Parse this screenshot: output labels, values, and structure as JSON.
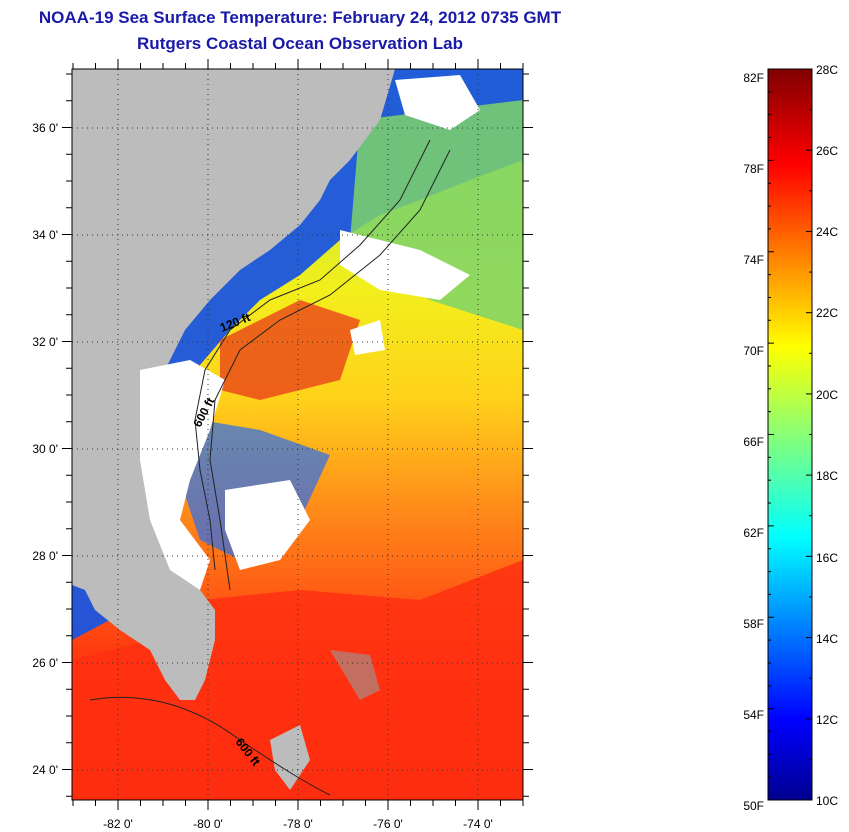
{
  "title": "NOAA-19 Sea Surface Temperature:  February 24, 2012 0735 GMT",
  "subtitle": "Rutgers Coastal Ocean Observation Lab",
  "map": {
    "lon_range": [
      -83.0,
      -73.0
    ],
    "lat_range": [
      23.0,
      37.2
    ],
    "x_tick_labels": [
      "-82 0'",
      "-80 0'",
      "-78 0'",
      "-76 0'",
      "-74 0'"
    ],
    "y_tick_labels": [
      "36 0'",
      "34 0'",
      "32 0'",
      "30 0'",
      "28 0'",
      "26 0'",
      "24 0'"
    ],
    "contour_labels": [
      "120 ft",
      "600 ft",
      "600 ft"
    ],
    "land_color": "#bcbcbc",
    "cloud_color": "#ffffff"
  },
  "colorbar": {
    "fahrenheit_labels": [
      "82F",
      "78F",
      "74F",
      "70F",
      "66F",
      "62F",
      "58F",
      "54F",
      "50F"
    ],
    "celsius_labels": [
      "28C",
      "26C",
      "24C",
      "22C",
      "20C",
      "18C",
      "16C",
      "14C",
      "12C",
      "10C"
    ],
    "range_c": [
      10,
      28
    ]
  }
}
